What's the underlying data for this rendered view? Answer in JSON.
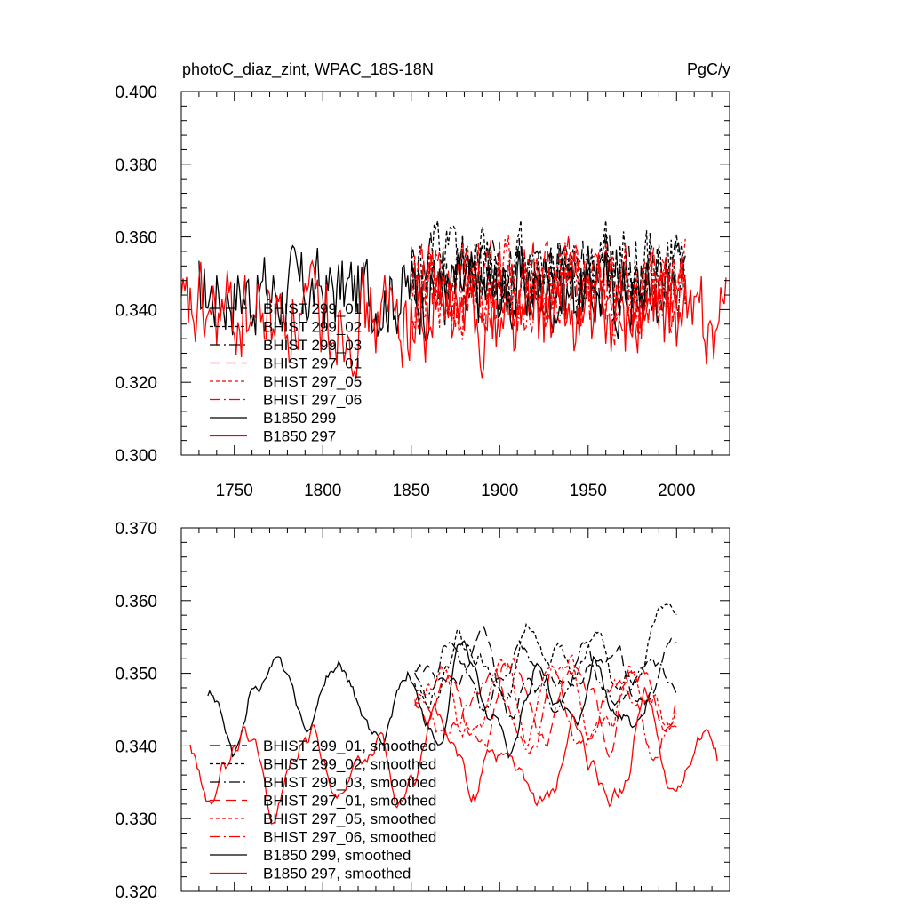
{
  "chart_data": [
    {
      "type": "line",
      "title_left": "photoC_diaz_zint, WPAC_18S-18N",
      "title_right": "PgC/y",
      "xlabel": "",
      "ylabel": "",
      "xlim": [
        1720,
        2030
      ],
      "ylim": [
        0.3,
        0.4
      ],
      "x_tick_labels": [
        "1750",
        "1800",
        "1850",
        "1900",
        "1950",
        "2000"
      ],
      "y_tick_labels": [
        "0.400",
        "0.380",
        "0.360",
        "0.340",
        "0.320",
        "0.300"
      ],
      "grid": false,
      "legend_position": "lower-left",
      "series": [
        {
          "name": "BHIST 299_01",
          "color": "#000000",
          "dash": "long-dash",
          "x_start": 1850,
          "x_end": 2005,
          "mean": 0.35,
          "amp": 0.009,
          "seed": 11
        },
        {
          "name": "BHIST 299_02",
          "color": "#000000",
          "dash": "short-dash",
          "x_start": 1850,
          "x_end": 2005,
          "mean": 0.352,
          "amp": 0.01,
          "seed": 12
        },
        {
          "name": "BHIST 299_03",
          "color": "#000000",
          "dash": "dash-dot",
          "x_start": 1850,
          "x_end": 2005,
          "mean": 0.349,
          "amp": 0.009,
          "seed": 13
        },
        {
          "name": "BHIST 297_01",
          "color": "#ff0000",
          "dash": "long-dash",
          "x_start": 1850,
          "x_end": 2005,
          "mean": 0.346,
          "amp": 0.01,
          "seed": 14
        },
        {
          "name": "BHIST 297_05",
          "color": "#ff0000",
          "dash": "short-dash",
          "x_start": 1850,
          "x_end": 2005,
          "mean": 0.347,
          "amp": 0.01,
          "seed": 15
        },
        {
          "name": "BHIST 297_06",
          "color": "#ff0000",
          "dash": "dash-dot",
          "x_start": 1850,
          "x_end": 2005,
          "mean": 0.345,
          "amp": 0.01,
          "seed": 16
        },
        {
          "name": "B1850 299",
          "color": "#000000",
          "dash": "solid",
          "x_start": 1730,
          "x_end": 1990,
          "mean": 0.345,
          "amp": 0.01,
          "seed": 17
        },
        {
          "name": "B1850 297",
          "color": "#ff0000",
          "dash": "solid",
          "x_start": 1720,
          "x_end": 2028,
          "mean": 0.338,
          "amp": 0.011,
          "seed": 18
        }
      ]
    },
    {
      "type": "line",
      "xlabel": "",
      "ylabel": "",
      "xlim": [
        1720,
        2030
      ],
      "ylim": [
        0.32,
        0.37
      ],
      "y_tick_labels": [
        "0.370",
        "0.360",
        "0.350",
        "0.340",
        "0.330",
        "0.320"
      ],
      "grid": false,
      "legend_position": "lower-left",
      "series": [
        {
          "name": "BHIST 299_01, smoothed",
          "color": "#000000",
          "dash": "long-dash",
          "x_start": 1852,
          "x_end": 2000,
          "mean": 0.35,
          "amp": 0.005,
          "seed": 21
        },
        {
          "name": "BHIST 299_02, smoothed",
          "color": "#000000",
          "dash": "short-dash",
          "x_start": 1852,
          "x_end": 2000,
          "mean": 0.352,
          "amp": 0.006,
          "seed": 22
        },
        {
          "name": "BHIST 299_03, smoothed",
          "color": "#000000",
          "dash": "dash-dot",
          "x_start": 1852,
          "x_end": 2000,
          "mean": 0.349,
          "amp": 0.005,
          "seed": 23
        },
        {
          "name": "BHIST 297_01, smoothed",
          "color": "#ff0000",
          "dash": "long-dash",
          "x_start": 1852,
          "x_end": 2000,
          "mean": 0.346,
          "amp": 0.006,
          "seed": 24
        },
        {
          "name": "BHIST 297_05, smoothed",
          "color": "#ff0000",
          "dash": "short-dash",
          "x_start": 1852,
          "x_end": 2000,
          "mean": 0.347,
          "amp": 0.006,
          "seed": 25
        },
        {
          "name": "BHIST 297_06, smoothed",
          "color": "#ff0000",
          "dash": "dash-dot",
          "x_start": 1852,
          "x_end": 2000,
          "mean": 0.345,
          "amp": 0.006,
          "seed": 26
        },
        {
          "name": "B1850 299, smoothed",
          "color": "#000000",
          "dash": "solid",
          "x_start": 1735,
          "x_end": 1985,
          "mean": 0.346,
          "amp": 0.006,
          "seed": 27
        },
        {
          "name": "B1850 297, smoothed",
          "color": "#ff0000",
          "dash": "solid",
          "x_start": 1725,
          "x_end": 2023,
          "mean": 0.338,
          "amp": 0.007,
          "seed": 28
        }
      ]
    }
  ]
}
